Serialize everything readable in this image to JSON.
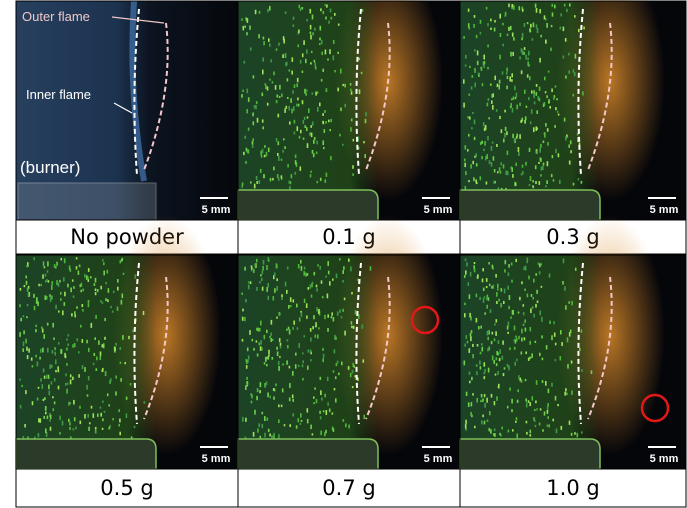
{
  "panels": [
    {
      "caption": "No powder",
      "scale_bar": "5 mm",
      "labels": {
        "outer": "Outer flame",
        "inner": "Inner flame",
        "burner": "(burner)"
      }
    },
    {
      "caption": "0.1 g",
      "scale_bar": "5 mm"
    },
    {
      "caption": "0.3 g",
      "scale_bar": "5 mm"
    },
    {
      "caption": "0.5 g",
      "scale_bar": "5 mm"
    },
    {
      "caption": "0.7 g",
      "scale_bar": "5 mm"
    },
    {
      "caption": "1.0 g",
      "scale_bar": "5 mm"
    }
  ]
}
